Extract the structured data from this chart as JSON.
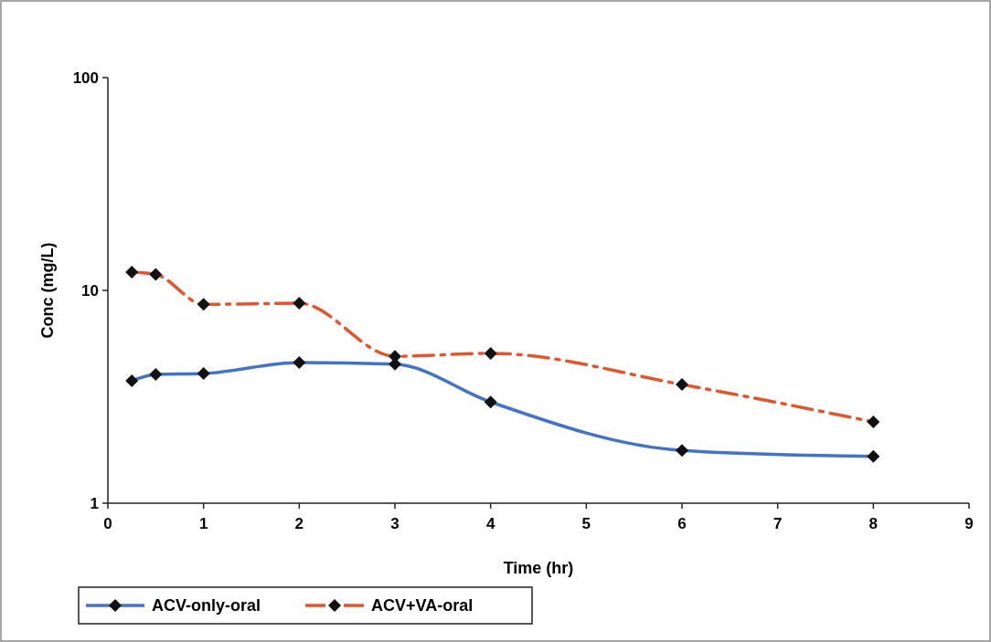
{
  "chart_data": {
    "type": "line",
    "xlabel": "Time (hr)",
    "ylabel": "Conc (mg/L)",
    "x": [
      0.25,
      0.5,
      1,
      2,
      3,
      4,
      6,
      8
    ],
    "series": [
      {
        "name": "ACV-only-oral",
        "color": "#4472c4",
        "line_style": "solid",
        "values": [
          3.76,
          4.03,
          4.07,
          4.58,
          4.5,
          2.99,
          1.77,
          1.66
        ]
      },
      {
        "name": "ACV+VA-oral",
        "color": "#e0562f",
        "line_style": "dashed",
        "values": [
          12.2,
          11.9,
          8.6,
          8.7,
          4.9,
          5.06,
          3.61,
          2.41
        ]
      }
    ],
    "xlim": [
      0,
      9
    ],
    "xticks": [
      0,
      1,
      2,
      3,
      4,
      5,
      6,
      7,
      8,
      9
    ],
    "ylim": [
      1,
      100
    ],
    "yticks": [
      1,
      10,
      100
    ],
    "log": "y",
    "grid": false,
    "legend": "bottom",
    "marker": "diamond"
  }
}
